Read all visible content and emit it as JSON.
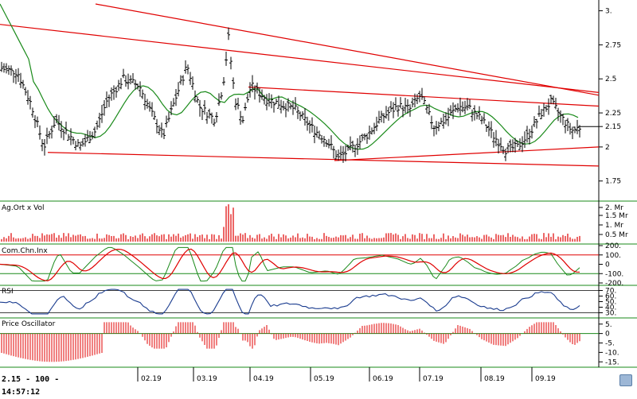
{
  "chart_data": {
    "type": "candlestick-ohlc",
    "price_panel": {
      "y_ticks": [
        "3.",
        "2.75",
        "2.5",
        "2.25",
        "2.15",
        "2",
        "1.75"
      ],
      "ylim": [
        1.62,
        3.05
      ],
      "close_level": 2.15
    },
    "x_labels": [
      "02.19",
      "03.19",
      "04.19",
      "05.19",
      "06.19",
      "07.19",
      "08.19",
      "09.19"
    ],
    "volume_panel": {
      "title": "Ag.Ort x Vol",
      "y_ticks": [
        "2. Mr",
        "1.5 Mr",
        "1. Mr",
        "0.5 Mr"
      ]
    },
    "cci_panel": {
      "title": "Com.Chn.Inx",
      "y_ticks": [
        "200.",
        "100.",
        "0",
        "-100.",
        "-200."
      ]
    },
    "rsi_panel": {
      "title": "RSI",
      "y_ticks": [
        "70.",
        "60.",
        "50.",
        "40.",
        "30."
      ]
    },
    "price_oscillator_panel": {
      "title": "Price Oscillator",
      "y_ticks": [
        "5.",
        "0",
        "-5.",
        "-10.",
        "-15."
      ]
    }
  },
  "status_bar": {
    "text": "2.15 - 100 - 14:57:12"
  },
  "colors": {
    "price": "#000000",
    "ma": "#1a8a1a",
    "trend": "#e00000",
    "rsi": "#1a3c8f",
    "osc": "#e00000",
    "separator": "#1a8a1a"
  }
}
